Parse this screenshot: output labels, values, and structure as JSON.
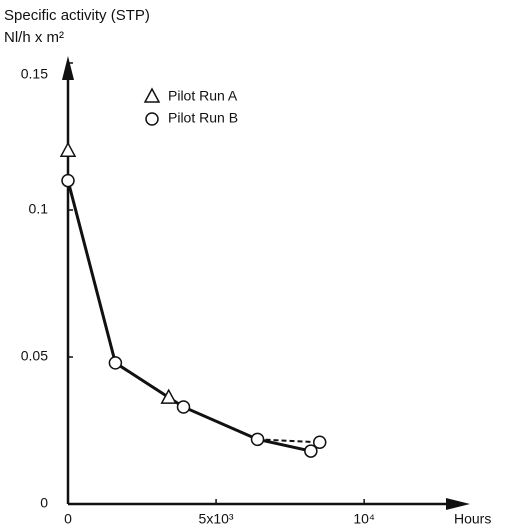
{
  "chart_data": {
    "type": "scatter",
    "y_label_lines": [
      "Specific activity (STP)",
      "Nl/h x m²"
    ],
    "x_label": "Hours",
    "xlim": [
      0,
      13000
    ],
    "ylim": [
      0,
      0.15
    ],
    "xticks": [
      0,
      {
        "value": 5000,
        "label": "5x10³"
      },
      {
        "value": 10000,
        "label": "10⁴"
      }
    ],
    "yticks": [
      0,
      0.05,
      0.1,
      0.15
    ],
    "series": [
      {
        "name": "Pilot Run A",
        "marker": "triangle",
        "color": "#111111",
        "x": [
          0,
          3400
        ],
        "values": [
          0.12,
          0.036
        ]
      },
      {
        "name": "Pilot Run B",
        "marker": "circle",
        "color": "#111111",
        "x": [
          0,
          1600,
          3900,
          6400,
          8200,
          8500
        ],
        "values": [
          0.11,
          0.048,
          0.033,
          0.022,
          0.018,
          0.021
        ]
      }
    ]
  }
}
